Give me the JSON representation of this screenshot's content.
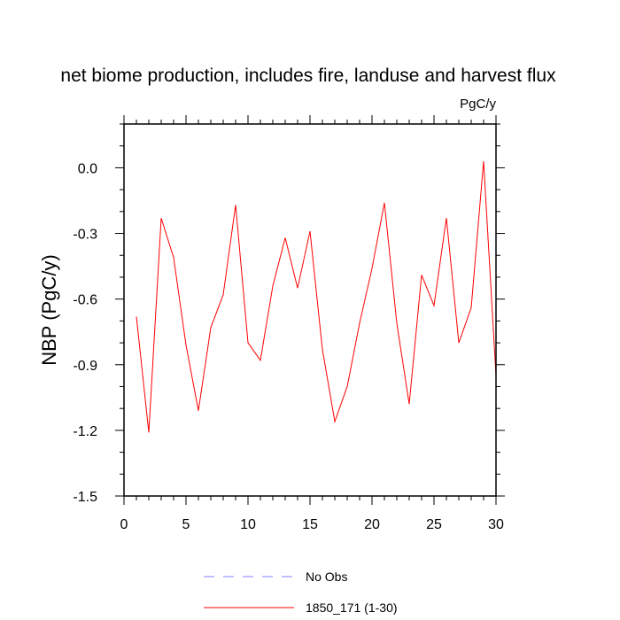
{
  "chart_data": {
    "type": "line",
    "title": "net biome production, includes fire, landuse and harvest flux",
    "units": "PgC/y",
    "ylabel": "NBP  (PgC/y)",
    "xlabel": "",
    "xlim": [
      0,
      30
    ],
    "ylim": [
      -1.5,
      0.2
    ],
    "xticks": [
      0,
      5,
      10,
      15,
      20,
      25,
      30
    ],
    "yticks": [
      0.0,
      -0.3,
      -0.6,
      -0.9,
      -1.2,
      -1.5
    ],
    "ytick_labels": [
      "0.0",
      "-0.3",
      "-0.6",
      "-0.9",
      "-1.2",
      "-1.5"
    ],
    "grid": false,
    "series": [
      {
        "name": "1850_171 (1-30)",
        "color": "#ff0000",
        "x": [
          1,
          2,
          3,
          4,
          5,
          6,
          7,
          8,
          9,
          10,
          11,
          12,
          13,
          14,
          15,
          16,
          17,
          18,
          19,
          20,
          21,
          22,
          23,
          24,
          25,
          26,
          27,
          28,
          29,
          30
        ],
        "y": [
          -0.68,
          -1.21,
          -0.23,
          -0.41,
          -0.81,
          -1.11,
          -0.73,
          -0.58,
          -0.17,
          -0.8,
          -0.88,
          -0.54,
          -0.32,
          -0.55,
          -0.29,
          -0.83,
          -1.16,
          -1.0,
          -0.71,
          -0.46,
          -0.16,
          -0.71,
          -1.08,
          -0.49,
          -0.63,
          -0.23,
          -0.8,
          -0.64,
          0.03,
          -0.95
        ]
      }
    ],
    "legend": [
      {
        "label": "No Obs",
        "color": "#8080ff",
        "style": "dashed"
      },
      {
        "label": "1850_171 (1-30)",
        "color": "#ff0000",
        "style": "solid"
      }
    ],
    "legend_position": "bottom"
  }
}
